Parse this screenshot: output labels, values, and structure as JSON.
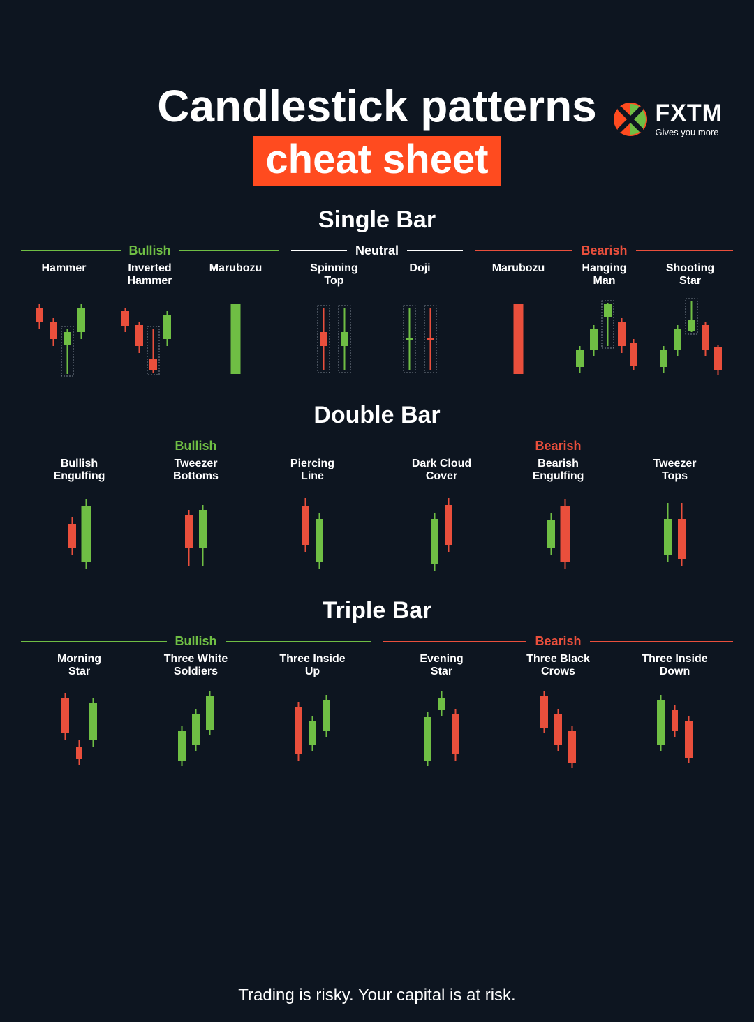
{
  "colors": {
    "bg": "#0d1520",
    "text": "#ffffff",
    "accent": "#ff4b1f",
    "bullish": "#6fbe44",
    "bearish": "#e94f3c",
    "neutral": "#ffffff",
    "dashed": "#9aa5b1"
  },
  "logo": {
    "name": "FXTM",
    "tagline": "Gives you more"
  },
  "title": {
    "line1": "Candlestick patterns",
    "line2": "cheat sheet",
    "line2_bg": "#ff4b1f",
    "fontsize_line1": 64,
    "fontsize_line2": 58
  },
  "footer": "Trading is risky. Your capital is at risk.",
  "candle_area": {
    "width": 100,
    "height": 130
  },
  "sections": [
    {
      "title": "Single Bar",
      "groups": [
        {
          "label": "Bullish",
          "color": "#6fbe44",
          "flex": 3,
          "patterns": [
            {
              "label": "Hammer",
              "candles": [
                {
                  "x": 15,
                  "wickTop": 20,
                  "wickBot": 55,
                  "bodyTop": 25,
                  "bodyBot": 45,
                  "c": "#e94f3c"
                },
                {
                  "x": 35,
                  "wickTop": 40,
                  "wickBot": 80,
                  "bodyTop": 45,
                  "bodyBot": 70,
                  "c": "#e94f3c"
                },
                {
                  "x": 55,
                  "wickTop": 55,
                  "wickBot": 120,
                  "bodyTop": 60,
                  "bodyBot": 78,
                  "c": "#6fbe44",
                  "highlight": true
                },
                {
                  "x": 75,
                  "wickTop": 20,
                  "wickBot": 70,
                  "bodyTop": 25,
                  "bodyBot": 60,
                  "c": "#6fbe44"
                }
              ]
            },
            {
              "label": "Inverted\nHammer",
              "candles": [
                {
                  "x": 15,
                  "wickTop": 25,
                  "wickBot": 60,
                  "bodyTop": 30,
                  "bodyBot": 52,
                  "c": "#e94f3c"
                },
                {
                  "x": 35,
                  "wickTop": 45,
                  "wickBot": 90,
                  "bodyTop": 50,
                  "bodyBot": 80,
                  "c": "#e94f3c"
                },
                {
                  "x": 55,
                  "wickTop": 55,
                  "wickBot": 118,
                  "bodyTop": 98,
                  "bodyBot": 115,
                  "c": "#e94f3c",
                  "highlight": true
                },
                {
                  "x": 75,
                  "wickTop": 30,
                  "wickBot": 80,
                  "bodyTop": 35,
                  "bodyBot": 70,
                  "c": "#6fbe44"
                }
              ]
            },
            {
              "label": "Marubozu",
              "candles": [
                {
                  "x": 50,
                  "wickTop": 20,
                  "wickBot": 120,
                  "bodyTop": 20,
                  "bodyBot": 120,
                  "c": "#6fbe44",
                  "w": 14
                }
              ]
            }
          ]
        },
        {
          "label": "Neutral",
          "color": "#ffffff",
          "flex": 2,
          "patterns": [
            {
              "label": "Spinning\nTop",
              "candles": [
                {
                  "x": 35,
                  "wickTop": 25,
                  "wickBot": 115,
                  "bodyTop": 60,
                  "bodyBot": 80,
                  "c": "#e94f3c",
                  "highlight": true
                },
                {
                  "x": 65,
                  "wickTop": 25,
                  "wickBot": 115,
                  "bodyTop": 60,
                  "bodyBot": 80,
                  "c": "#6fbe44",
                  "highlight": true
                }
              ]
            },
            {
              "label": "Doji",
              "candles": [
                {
                  "x": 35,
                  "wickTop": 25,
                  "wickBot": 115,
                  "bodyTop": 68,
                  "bodyBot": 72,
                  "c": "#6fbe44",
                  "highlight": true
                },
                {
                  "x": 65,
                  "wickTop": 25,
                  "wickBot": 115,
                  "bodyTop": 68,
                  "bodyBot": 72,
                  "c": "#e94f3c",
                  "highlight": true
                }
              ]
            }
          ]
        },
        {
          "label": "Bearish",
          "color": "#e94f3c",
          "flex": 3,
          "patterns": [
            {
              "label": "Marubozu",
              "candles": [
                {
                  "x": 50,
                  "wickTop": 20,
                  "wickBot": 120,
                  "bodyTop": 20,
                  "bodyBot": 120,
                  "c": "#e94f3c",
                  "w": 14
                }
              ]
            },
            {
              "label": "Hanging\nMan",
              "candles": [
                {
                  "x": 15,
                  "wickTop": 80,
                  "wickBot": 118,
                  "bodyTop": 85,
                  "bodyBot": 110,
                  "c": "#6fbe44"
                },
                {
                  "x": 35,
                  "wickTop": 50,
                  "wickBot": 95,
                  "bodyTop": 55,
                  "bodyBot": 85,
                  "c": "#6fbe44"
                },
                {
                  "x": 55,
                  "wickTop": 18,
                  "wickBot": 80,
                  "bodyTop": 20,
                  "bodyBot": 38,
                  "c": "#6fbe44",
                  "highlight": true
                },
                {
                  "x": 75,
                  "wickTop": 40,
                  "wickBot": 90,
                  "bodyTop": 45,
                  "bodyBot": 80,
                  "c": "#e94f3c"
                },
                {
                  "x": 92,
                  "wickTop": 70,
                  "wickBot": 115,
                  "bodyTop": 75,
                  "bodyBot": 108,
                  "c": "#e94f3c"
                }
              ]
            },
            {
              "label": "Shooting\nStar",
              "candles": [
                {
                  "x": 12,
                  "wickTop": 80,
                  "wickBot": 118,
                  "bodyTop": 85,
                  "bodyBot": 110,
                  "c": "#6fbe44"
                },
                {
                  "x": 32,
                  "wickTop": 50,
                  "wickBot": 95,
                  "bodyTop": 55,
                  "bodyBot": 85,
                  "c": "#6fbe44"
                },
                {
                  "x": 52,
                  "wickTop": 15,
                  "wickBot": 60,
                  "bodyTop": 42,
                  "bodyBot": 58,
                  "c": "#6fbe44",
                  "highlight": true
                },
                {
                  "x": 72,
                  "wickTop": 45,
                  "wickBot": 95,
                  "bodyTop": 50,
                  "bodyBot": 85,
                  "c": "#e94f3c"
                },
                {
                  "x": 90,
                  "wickTop": 78,
                  "wickBot": 122,
                  "bodyTop": 82,
                  "bodyBot": 115,
                  "c": "#e94f3c"
                }
              ]
            }
          ]
        }
      ]
    },
    {
      "title": "Double Bar",
      "groups": [
        {
          "label": "Bullish",
          "color": "#6fbe44",
          "flex": 1,
          "patterns": [
            {
              "label": "Bullish\nEngulfing",
              "candles": [
                {
                  "x": 40,
                  "wickTop": 45,
                  "wickBot": 100,
                  "bodyTop": 55,
                  "bodyBot": 90,
                  "c": "#e94f3c"
                },
                {
                  "x": 60,
                  "wickTop": 20,
                  "wickBot": 120,
                  "bodyTop": 30,
                  "bodyBot": 110,
                  "c": "#6fbe44",
                  "w": 14
                }
              ]
            },
            {
              "label": "Tweezer\nBottoms",
              "candles": [
                {
                  "x": 40,
                  "wickTop": 35,
                  "wickBot": 115,
                  "bodyTop": 42,
                  "bodyBot": 90,
                  "c": "#e94f3c"
                },
                {
                  "x": 60,
                  "wickTop": 28,
                  "wickBot": 115,
                  "bodyTop": 35,
                  "bodyBot": 90,
                  "c": "#6fbe44"
                }
              ]
            },
            {
              "label": "Piercing\nLine",
              "candles": [
                {
                  "x": 40,
                  "wickTop": 18,
                  "wickBot": 95,
                  "bodyTop": 30,
                  "bodyBot": 85,
                  "c": "#e94f3c"
                },
                {
                  "x": 60,
                  "wickTop": 40,
                  "wickBot": 120,
                  "bodyTop": 48,
                  "bodyBot": 110,
                  "c": "#6fbe44"
                }
              ]
            }
          ]
        },
        {
          "label": "Bearish",
          "color": "#e94f3c",
          "flex": 1,
          "patterns": [
            {
              "label": "Dark Cloud\nCover",
              "candles": [
                {
                  "x": 40,
                  "wickTop": 40,
                  "wickBot": 122,
                  "bodyTop": 48,
                  "bodyBot": 112,
                  "c": "#6fbe44"
                },
                {
                  "x": 60,
                  "wickTop": 18,
                  "wickBot": 95,
                  "bodyTop": 28,
                  "bodyBot": 85,
                  "c": "#e94f3c"
                }
              ]
            },
            {
              "label": "Bearish\nEngulfing",
              "candles": [
                {
                  "x": 40,
                  "wickTop": 40,
                  "wickBot": 100,
                  "bodyTop": 50,
                  "bodyBot": 90,
                  "c": "#6fbe44"
                },
                {
                  "x": 60,
                  "wickTop": 20,
                  "wickBot": 120,
                  "bodyTop": 30,
                  "bodyBot": 110,
                  "c": "#e94f3c",
                  "w": 14
                }
              ]
            },
            {
              "label": "Tweezer\nTops",
              "candles": [
                {
                  "x": 40,
                  "wickTop": 25,
                  "wickBot": 110,
                  "bodyTop": 48,
                  "bodyBot": 100,
                  "c": "#6fbe44"
                },
                {
                  "x": 60,
                  "wickTop": 25,
                  "wickBot": 115,
                  "bodyTop": 48,
                  "bodyBot": 105,
                  "c": "#e94f3c"
                }
              ]
            }
          ]
        }
      ]
    },
    {
      "title": "Triple Bar",
      "groups": [
        {
          "label": "Bullish",
          "color": "#6fbe44",
          "flex": 1,
          "patterns": [
            {
              "label": "Morning\nStar",
              "candles": [
                {
                  "x": 30,
                  "wickTop": 18,
                  "wickBot": 85,
                  "bodyTop": 25,
                  "bodyBot": 75,
                  "c": "#e94f3c"
                },
                {
                  "x": 50,
                  "wickTop": 85,
                  "wickBot": 120,
                  "bodyTop": 95,
                  "bodyBot": 112,
                  "c": "#e94f3c",
                  "w": 9
                },
                {
                  "x": 70,
                  "wickTop": 25,
                  "wickBot": 95,
                  "bodyTop": 32,
                  "bodyBot": 85,
                  "c": "#6fbe44"
                }
              ]
            },
            {
              "label": "Three White\nSoldiers",
              "candles": [
                {
                  "x": 30,
                  "wickTop": 65,
                  "wickBot": 122,
                  "bodyTop": 72,
                  "bodyBot": 115,
                  "c": "#6fbe44"
                },
                {
                  "x": 50,
                  "wickTop": 40,
                  "wickBot": 100,
                  "bodyTop": 48,
                  "bodyBot": 92,
                  "c": "#6fbe44"
                },
                {
                  "x": 70,
                  "wickTop": 15,
                  "wickBot": 78,
                  "bodyTop": 22,
                  "bodyBot": 70,
                  "c": "#6fbe44"
                }
              ]
            },
            {
              "label": "Three Inside\nUp",
              "candles": [
                {
                  "x": 30,
                  "wickTop": 30,
                  "wickBot": 115,
                  "bodyTop": 38,
                  "bodyBot": 105,
                  "c": "#e94f3c"
                },
                {
                  "x": 50,
                  "wickTop": 50,
                  "wickBot": 100,
                  "bodyTop": 58,
                  "bodyBot": 92,
                  "c": "#6fbe44",
                  "w": 9
                },
                {
                  "x": 70,
                  "wickTop": 20,
                  "wickBot": 80,
                  "bodyTop": 28,
                  "bodyBot": 72,
                  "c": "#6fbe44"
                }
              ]
            }
          ]
        },
        {
          "label": "Bearish",
          "color": "#e94f3c",
          "flex": 1,
          "patterns": [
            {
              "label": "Evening\nStar",
              "candles": [
                {
                  "x": 30,
                  "wickTop": 45,
                  "wickBot": 122,
                  "bodyTop": 52,
                  "bodyBot": 115,
                  "c": "#6fbe44"
                },
                {
                  "x": 50,
                  "wickTop": 15,
                  "wickBot": 50,
                  "bodyTop": 25,
                  "bodyBot": 42,
                  "c": "#6fbe44",
                  "w": 9
                },
                {
                  "x": 70,
                  "wickTop": 40,
                  "wickBot": 115,
                  "bodyTop": 48,
                  "bodyBot": 105,
                  "c": "#e94f3c"
                }
              ]
            },
            {
              "label": "Three Black\nCrows",
              "candles": [
                {
                  "x": 30,
                  "wickTop": 15,
                  "wickBot": 75,
                  "bodyTop": 22,
                  "bodyBot": 68,
                  "c": "#e94f3c"
                },
                {
                  "x": 50,
                  "wickTop": 40,
                  "wickBot": 100,
                  "bodyTop": 48,
                  "bodyBot": 92,
                  "c": "#e94f3c"
                },
                {
                  "x": 70,
                  "wickTop": 65,
                  "wickBot": 125,
                  "bodyTop": 72,
                  "bodyBot": 118,
                  "c": "#e94f3c"
                }
              ]
            },
            {
              "label": "Three Inside\nDown",
              "candles": [
                {
                  "x": 30,
                  "wickTop": 20,
                  "wickBot": 100,
                  "bodyTop": 28,
                  "bodyBot": 92,
                  "c": "#6fbe44"
                },
                {
                  "x": 50,
                  "wickTop": 35,
                  "wickBot": 80,
                  "bodyTop": 42,
                  "bodyBot": 72,
                  "c": "#e94f3c",
                  "w": 9
                },
                {
                  "x": 70,
                  "wickTop": 50,
                  "wickBot": 118,
                  "bodyTop": 58,
                  "bodyBot": 110,
                  "c": "#e94f3c"
                }
              ]
            }
          ]
        }
      ]
    }
  ]
}
